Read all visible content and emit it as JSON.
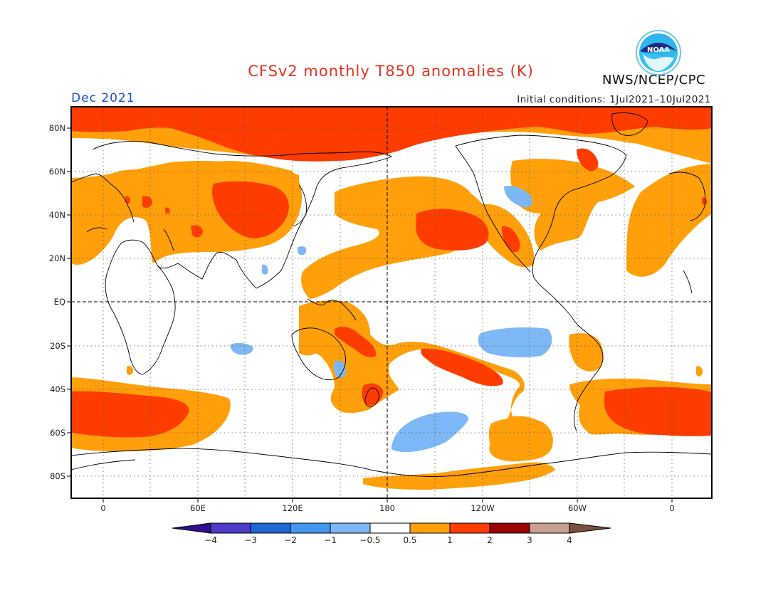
{
  "title": "CFSv2 monthly T850 anomalies (K)",
  "period": "Dec 2021",
  "initial_conditions": "Initial conditions: 1Jul2021–10Jul2021",
  "organization": "NWS/NCEP/CPC",
  "logo_text": "NOAA",
  "colors": {
    "title": "#e8321e",
    "period": "#1f4fd6",
    "warm_1": "#ff9f0a",
    "warm_2": "#ff3c00",
    "warm_3": "#9b0000",
    "warm_4": "#c8a090",
    "cold_1": "#7db8f6",
    "cold_2": "#4296f0",
    "cold_3": "#1e66d2",
    "cold_4": "#4c3cc8"
  },
  "lat_labels": [
    "80N",
    "60N",
    "40N",
    "20N",
    "EQ",
    "20S",
    "40S",
    "60S",
    "80S"
  ],
  "lon_labels": [
    "0",
    "60E",
    "120E",
    "180",
    "120W",
    "60W",
    "0"
  ],
  "colorbar": {
    "labels": [
      "−4",
      "−3",
      "−2",
      "−1",
      "−0.5",
      "0.5",
      "1",
      "2",
      "3",
      "4"
    ],
    "colors": [
      "#4c3cc8",
      "#1e66d2",
      "#4296f0",
      "#7db8f6",
      "#ffffff",
      "#ff9f0a",
      "#ff3c00",
      "#9b0000",
      "#c8a090"
    ],
    "low_end_color": "#30108c",
    "high_end_color": "#7a4f3c"
  }
}
